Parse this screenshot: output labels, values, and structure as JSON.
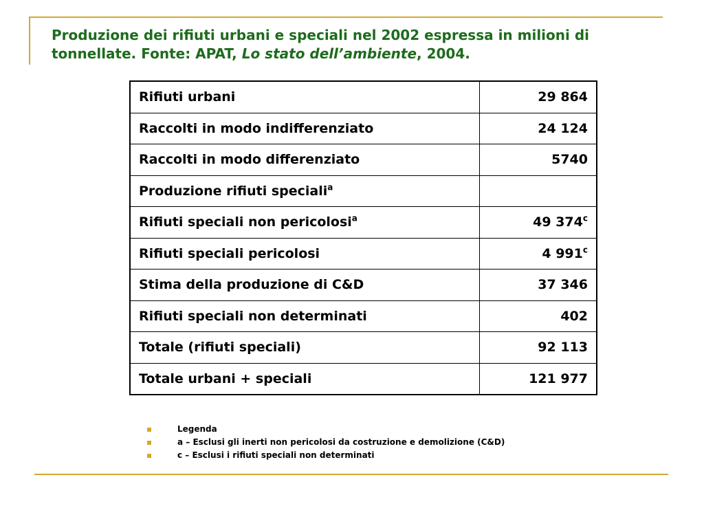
{
  "title": {
    "part1": "Produzione dei rifiuti urbani e speciali nel 2002 espressa in milioni di tonnellate. Fonte: APAT, ",
    "italic": "Lo stato dell’ambiente",
    "part2": ", 2004."
  },
  "table": {
    "rows": [
      {
        "label": "Rifiuti urbani",
        "label_sup": "",
        "value": "29 864",
        "value_sup": ""
      },
      {
        "label": "Raccolti in modo indifferenziato",
        "label_sup": "",
        "value": "24 124",
        "value_sup": ""
      },
      {
        "label": "Raccolti in modo differenziato",
        "label_sup": "",
        "value": "5740",
        "value_sup": ""
      },
      {
        "label": "Produzione rifiuti speciali",
        "label_sup": "a",
        "value": "",
        "value_sup": ""
      },
      {
        "label": "Rifiuti speciali non pericolosi",
        "label_sup": "a",
        "value": "49 374",
        "value_sup": "c"
      },
      {
        "label": "Rifiuti speciali pericolosi",
        "label_sup": "",
        "value": "4 991",
        "value_sup": "c"
      },
      {
        "label": "Stima della produzione di C&D",
        "label_sup": "",
        "value": "37 346",
        "value_sup": ""
      },
      {
        "label": "Rifiuti speciali non determinati",
        "label_sup": "",
        "value": "402",
        "value_sup": ""
      },
      {
        "label": "Totale (rifiuti speciali)",
        "label_sup": "",
        "value": "92 113",
        "value_sup": ""
      },
      {
        "label": "Totale urbani + speciali",
        "label_sup": "",
        "value": "121 977",
        "value_sup": ""
      }
    ]
  },
  "legend": [
    "Legenda",
    "a – Esclusi gli inerti non pericolosi da costruzione e demolizione (C&D)",
    "c – Esclusi i rifiuti speciali non determinati"
  ],
  "colors": {
    "title": "#1d6b1d",
    "accent_lines": "#d4a92c",
    "bullets": "#d4a92c"
  }
}
